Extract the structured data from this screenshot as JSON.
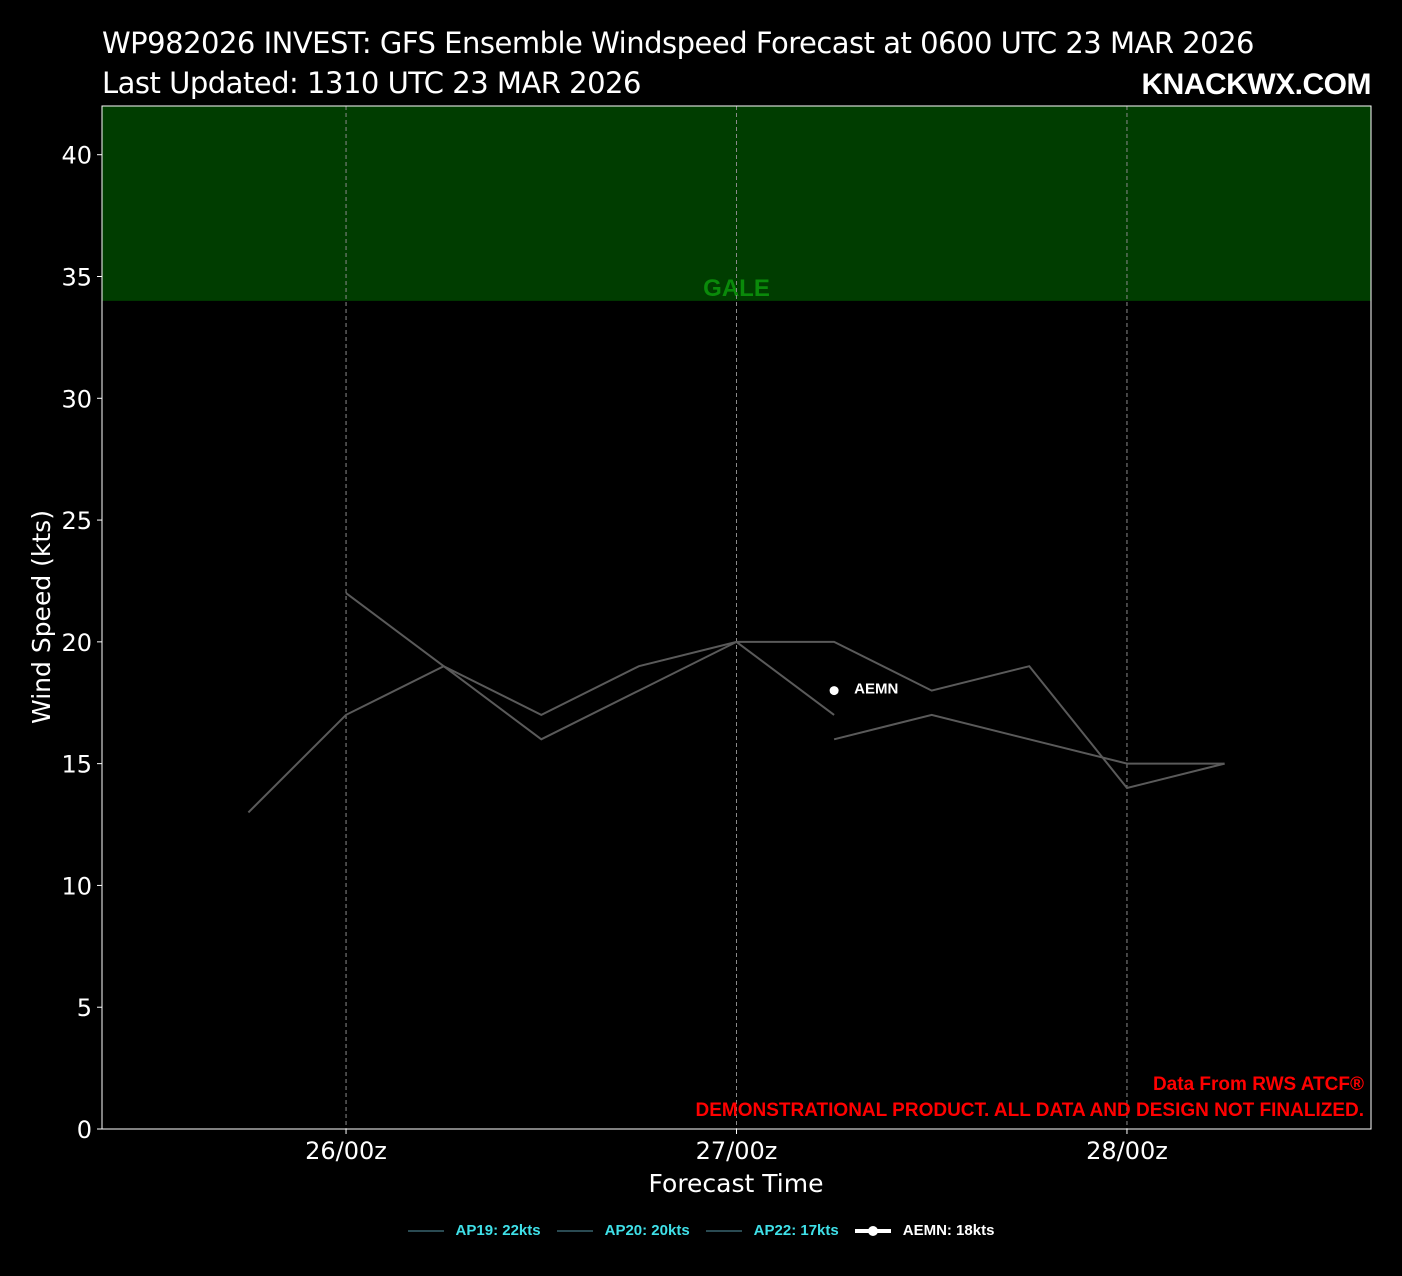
{
  "header": {
    "title_line1": "WP982026 INVEST: GFS Ensemble Windspeed Forecast at 0600 UTC 23 MAR 2026",
    "title_line2": "Last Updated: 1310 UTC 23 MAR 2026",
    "brand": "KNACKWX.COM"
  },
  "chart_data": {
    "type": "line",
    "xlabel": "Forecast Time",
    "ylabel": "Wind Speed (kts)",
    "ylim": [
      0,
      42
    ],
    "yticks": [
      0,
      5,
      10,
      15,
      20,
      25,
      30,
      35,
      40
    ],
    "xlim": [
      "25/18z",
      "28/06z"
    ],
    "xticks": [
      {
        "hours": 0,
        "label": "26/00z"
      },
      {
        "hours": 24,
        "label": "27/00z"
      },
      {
        "hours": 48,
        "label": "28/00z"
      }
    ],
    "grid": "vertical dashed",
    "bands": [
      {
        "name": "GALE",
        "from": 34,
        "to": 42,
        "color": "#003d00",
        "label_color": "#0a8a0a"
      }
    ],
    "series": [
      {
        "name": "AP19",
        "legend": "AP19: 22kts",
        "color": "#5a5a5a",
        "points": [
          [
            0,
            22
          ],
          [
            6,
            19
          ],
          [
            12,
            16
          ],
          [
            18,
            18
          ],
          [
            24,
            20
          ],
          [
            30,
            17
          ]
        ]
      },
      {
        "name": "AP20",
        "legend": "AP20: 20kts",
        "color": "#5a5a5a",
        "points": [
          [
            -6,
            13
          ],
          [
            0,
            17
          ],
          [
            6,
            19
          ],
          [
            12,
            17
          ],
          [
            18,
            19
          ],
          [
            24,
            20
          ],
          [
            30,
            20
          ],
          [
            36,
            18
          ],
          [
            42,
            19
          ],
          [
            48,
            14
          ],
          [
            54,
            15
          ]
        ]
      },
      {
        "name": "AP22",
        "legend": "AP22: 17kts",
        "color": "#5a5a5a",
        "points": [
          [
            30,
            16
          ],
          [
            36,
            17
          ],
          [
            42,
            16
          ],
          [
            48,
            15
          ],
          [
            54,
            15
          ]
        ]
      },
      {
        "name": "AEMN",
        "legend": "AEMN: 18kts",
        "color": "#ffffff",
        "points": [
          [
            30,
            18
          ]
        ],
        "point_label": "AEMN"
      }
    ],
    "annotations": {
      "source": "Data From RWS ATCF®",
      "disclaimer": "DEMONSTRATIONAL PRODUCT. ALL DATA AND DESIGN NOT FINALIZED.",
      "color": "#ff0000"
    }
  }
}
